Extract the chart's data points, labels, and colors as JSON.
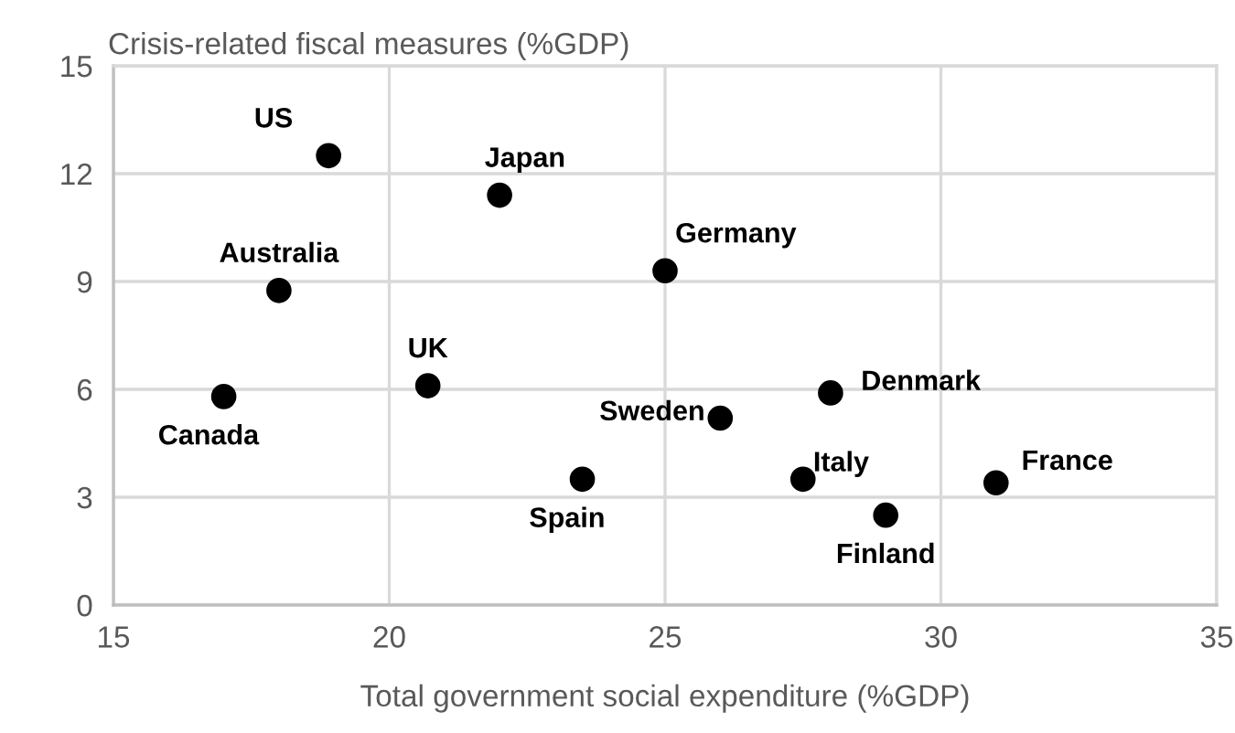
{
  "chart_data": {
    "type": "scatter",
    "ylabel": "Crisis-related fiscal measures (%GDP)",
    "xlabel": "Total government social expenditure (%GDP)",
    "series": [
      {
        "color": "#000000",
        "x": [
          18.9,
          22.0,
          18.0,
          20.7,
          17.0,
          23.5,
          25.0,
          26.0,
          28.0,
          27.5,
          31.0,
          29.0
        ],
        "values": [
          12.5,
          11.4,
          8.75,
          6.1,
          5.8,
          3.5,
          9.3,
          5.2,
          5.9,
          3.5,
          3.4,
          2.5
        ]
      }
    ],
    "annotations": [
      {
        "text": "US",
        "x": 18.9,
        "y": 12.5
      },
      {
        "text": "Japan",
        "x": 22.0,
        "y": 11.4
      },
      {
        "text": "Australia",
        "x": 18.0,
        "y": 8.75
      },
      {
        "text": "UK",
        "x": 20.7,
        "y": 6.1
      },
      {
        "text": "Canada",
        "x": 17.0,
        "y": 5.8
      },
      {
        "text": "Spain",
        "x": 23.5,
        "y": 3.5
      },
      {
        "text": "Germany",
        "x": 25.0,
        "y": 9.3
      },
      {
        "text": "Sweden",
        "x": 26.0,
        "y": 5.2
      },
      {
        "text": "Denmark",
        "x": 28.0,
        "y": 5.9
      },
      {
        "text": "Italy",
        "x": 27.5,
        "y": 3.5
      },
      {
        "text": "France",
        "x": 31.0,
        "y": 3.4
      },
      {
        "text": "Finland",
        "x": 29.0,
        "y": 2.5
      }
    ],
    "xlim": [
      15,
      35
    ],
    "xticks": [
      15,
      20,
      25,
      30,
      35
    ],
    "ylim": [
      0,
      15
    ],
    "yticks": [
      0,
      3,
      6,
      9,
      12,
      15
    ],
    "grid": true,
    "marker": "circle"
  }
}
